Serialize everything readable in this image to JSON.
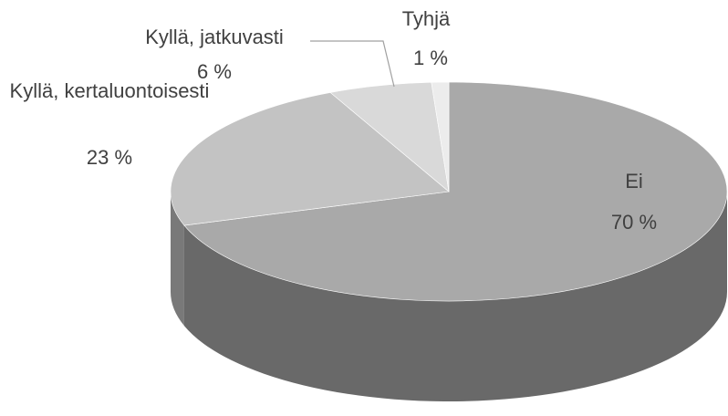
{
  "chart_data": {
    "type": "pie3d",
    "categories": [
      "Ei",
      "Kyllä, kertaluontoisesti",
      "Kyllä, jatkuvasti",
      "Tyhjä"
    ],
    "values": [
      70,
      23,
      6,
      1
    ],
    "value_labels": [
      "70 %",
      "23 %",
      "6 %",
      "1 %"
    ],
    "colors": [
      "#a9a9a9",
      "#c3c3c3",
      "#d9d9d9",
      "#ececec"
    ]
  }
}
